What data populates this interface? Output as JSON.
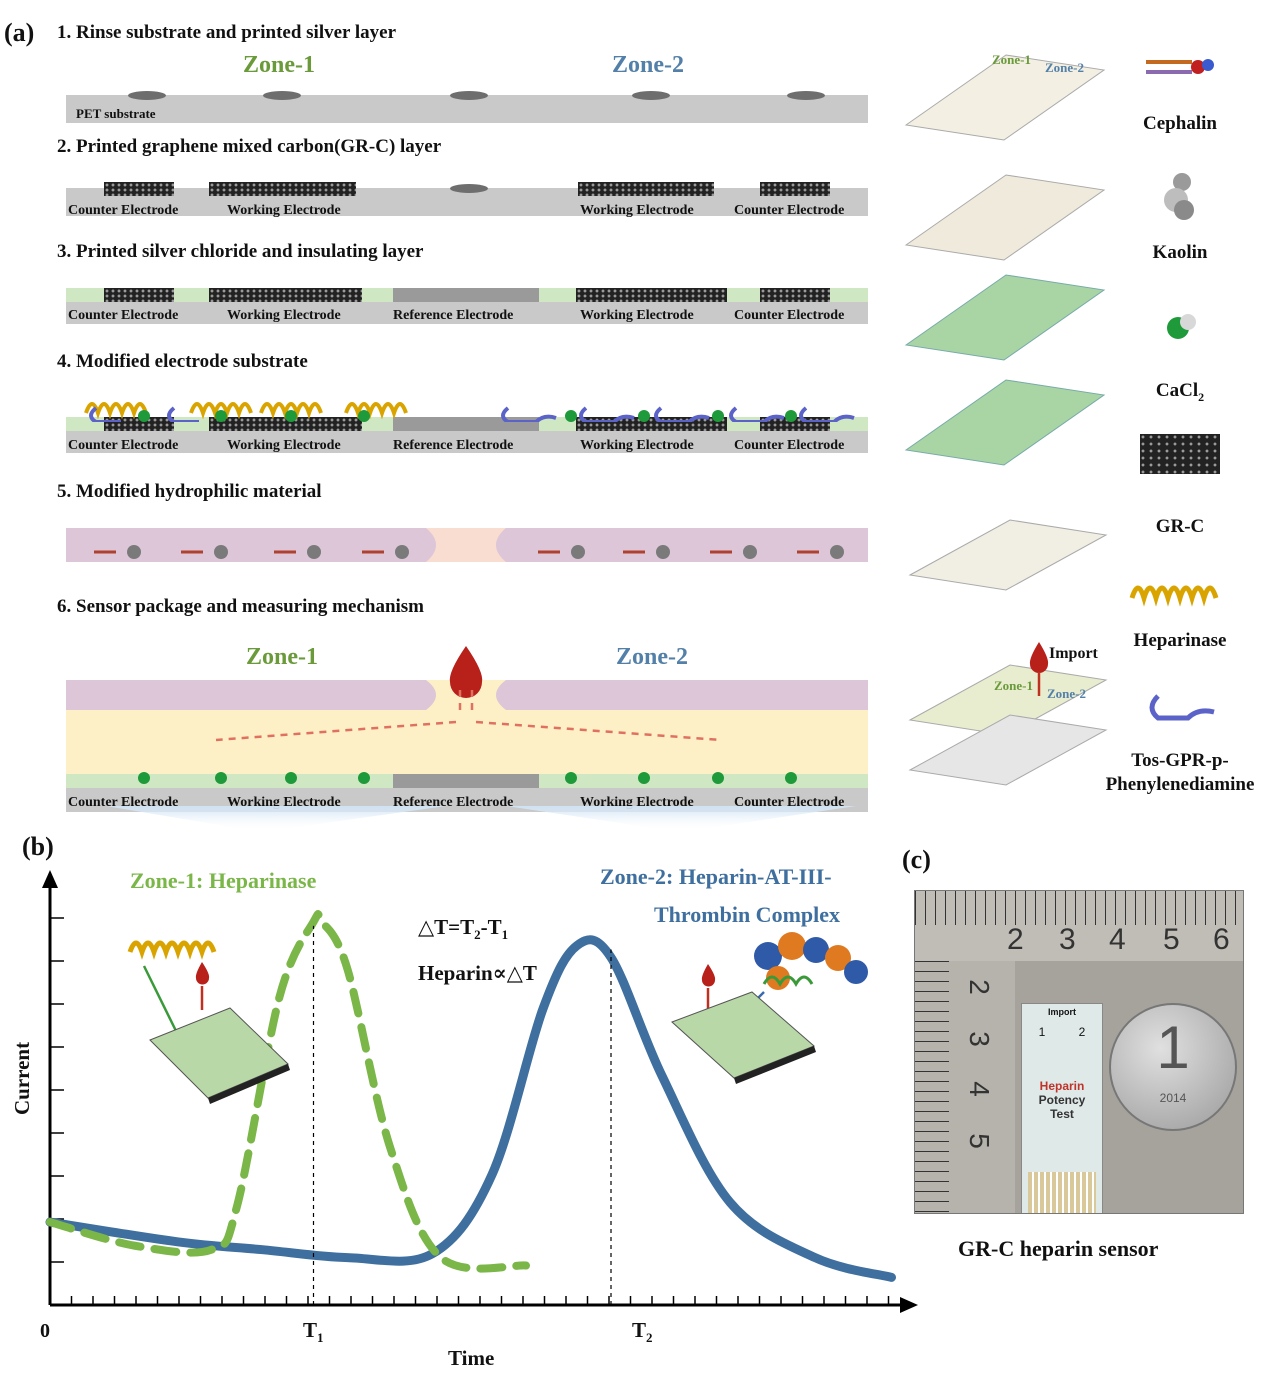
{
  "panel_a": {
    "label": "(a)",
    "steps": [
      "1. Rinse substrate and printed  silver layer",
      "2. Printed graphene mixed carbon(GR-C) layer",
      "3. Printed silver chloride  and insulating layer",
      "4. Modified electrode substrate",
      "5. Modified hydrophilic material",
      "6. Sensor package and measuring mechanism"
    ],
    "zone1": "Zone-1",
    "zone2": "Zone-2",
    "substrate_label": "PET substrate",
    "electrodes": {
      "counter": "Counter Electrode",
      "working": "Working Electrode",
      "reference": "Reference Electrode"
    },
    "layer_zone1": "Zone-1",
    "layer_zone2": "Zone-2",
    "import_label": "Import",
    "legend": {
      "cephalin": "Cephalin",
      "kaolin": "Kaolin",
      "cacl2": "CaCl",
      "cacl2_sub": "2",
      "grc": "GR-C",
      "heparinase": "Heparinase",
      "substrate_line1": "Tos-GPR-p-",
      "substrate_line2": "Phenylenediamine"
    }
  },
  "panel_b": {
    "label": "(b)",
    "zone1_title": "Zone-1: Heparinase",
    "zone2_title_line1": "Zone-2: Heparin-AT-III-",
    "zone2_title_line2": "Thrombin Complex",
    "eq1_prefix": "△T=T",
    "eq1_sub1": "2",
    "eq1_mid": "-T",
    "eq1_sub2": "1",
    "eq2": "Heparin∝△T",
    "ylabel": "Current",
    "xlabel": "Time",
    "origin": "0",
    "t1": "T",
    "t1_sub": "1",
    "t2": "T",
    "t2_sub": "2"
  },
  "chart_data": {
    "type": "line",
    "xlabel": "Time",
    "ylabel": "Current",
    "x_ticks": [
      "0",
      "T1",
      "T2"
    ],
    "series": [
      {
        "name": "Zone-1: Heparinase",
        "style": "dashed",
        "color": "#7ab648",
        "x": [
          0,
          0.1,
          0.19,
          0.22,
          0.27,
          0.31,
          0.32,
          0.35,
          0.4,
          0.46,
          0.56
        ],
        "y": [
          0.21,
          0.15,
          0.14,
          0.25,
          0.78,
          0.97,
          0.97,
          0.85,
          0.4,
          0.12,
          0.1
        ]
      },
      {
        "name": "Zone-2: Heparin-AT-III-Thrombin Complex",
        "style": "solid",
        "color": "#3e6f9e",
        "x": [
          0,
          0.15,
          0.25,
          0.35,
          0.45,
          0.52,
          0.58,
          0.62,
          0.66,
          0.72,
          0.8,
          0.9,
          0.99
        ],
        "y": [
          0.21,
          0.16,
          0.14,
          0.12,
          0.13,
          0.33,
          0.75,
          0.91,
          0.88,
          0.58,
          0.26,
          0.12,
          0.07
        ]
      }
    ],
    "markers": [
      {
        "label": "T1",
        "x": 0.31
      },
      {
        "label": "T2",
        "x": 0.66
      }
    ]
  },
  "panel_c": {
    "label": "(c)",
    "ruler_top": [
      "2",
      "3",
      "4",
      "5",
      "6"
    ],
    "ruler_left": [
      "2",
      "3",
      "4",
      "5"
    ],
    "strip_import": "Import",
    "strip_1": "1",
    "strip_2": "2",
    "strip_heparin": "Heparin",
    "strip_potency": "Potency",
    "strip_test": "Test",
    "coin_numeral": "1",
    "coin_year": "2014",
    "caption": "GR-C heparin sensor"
  }
}
